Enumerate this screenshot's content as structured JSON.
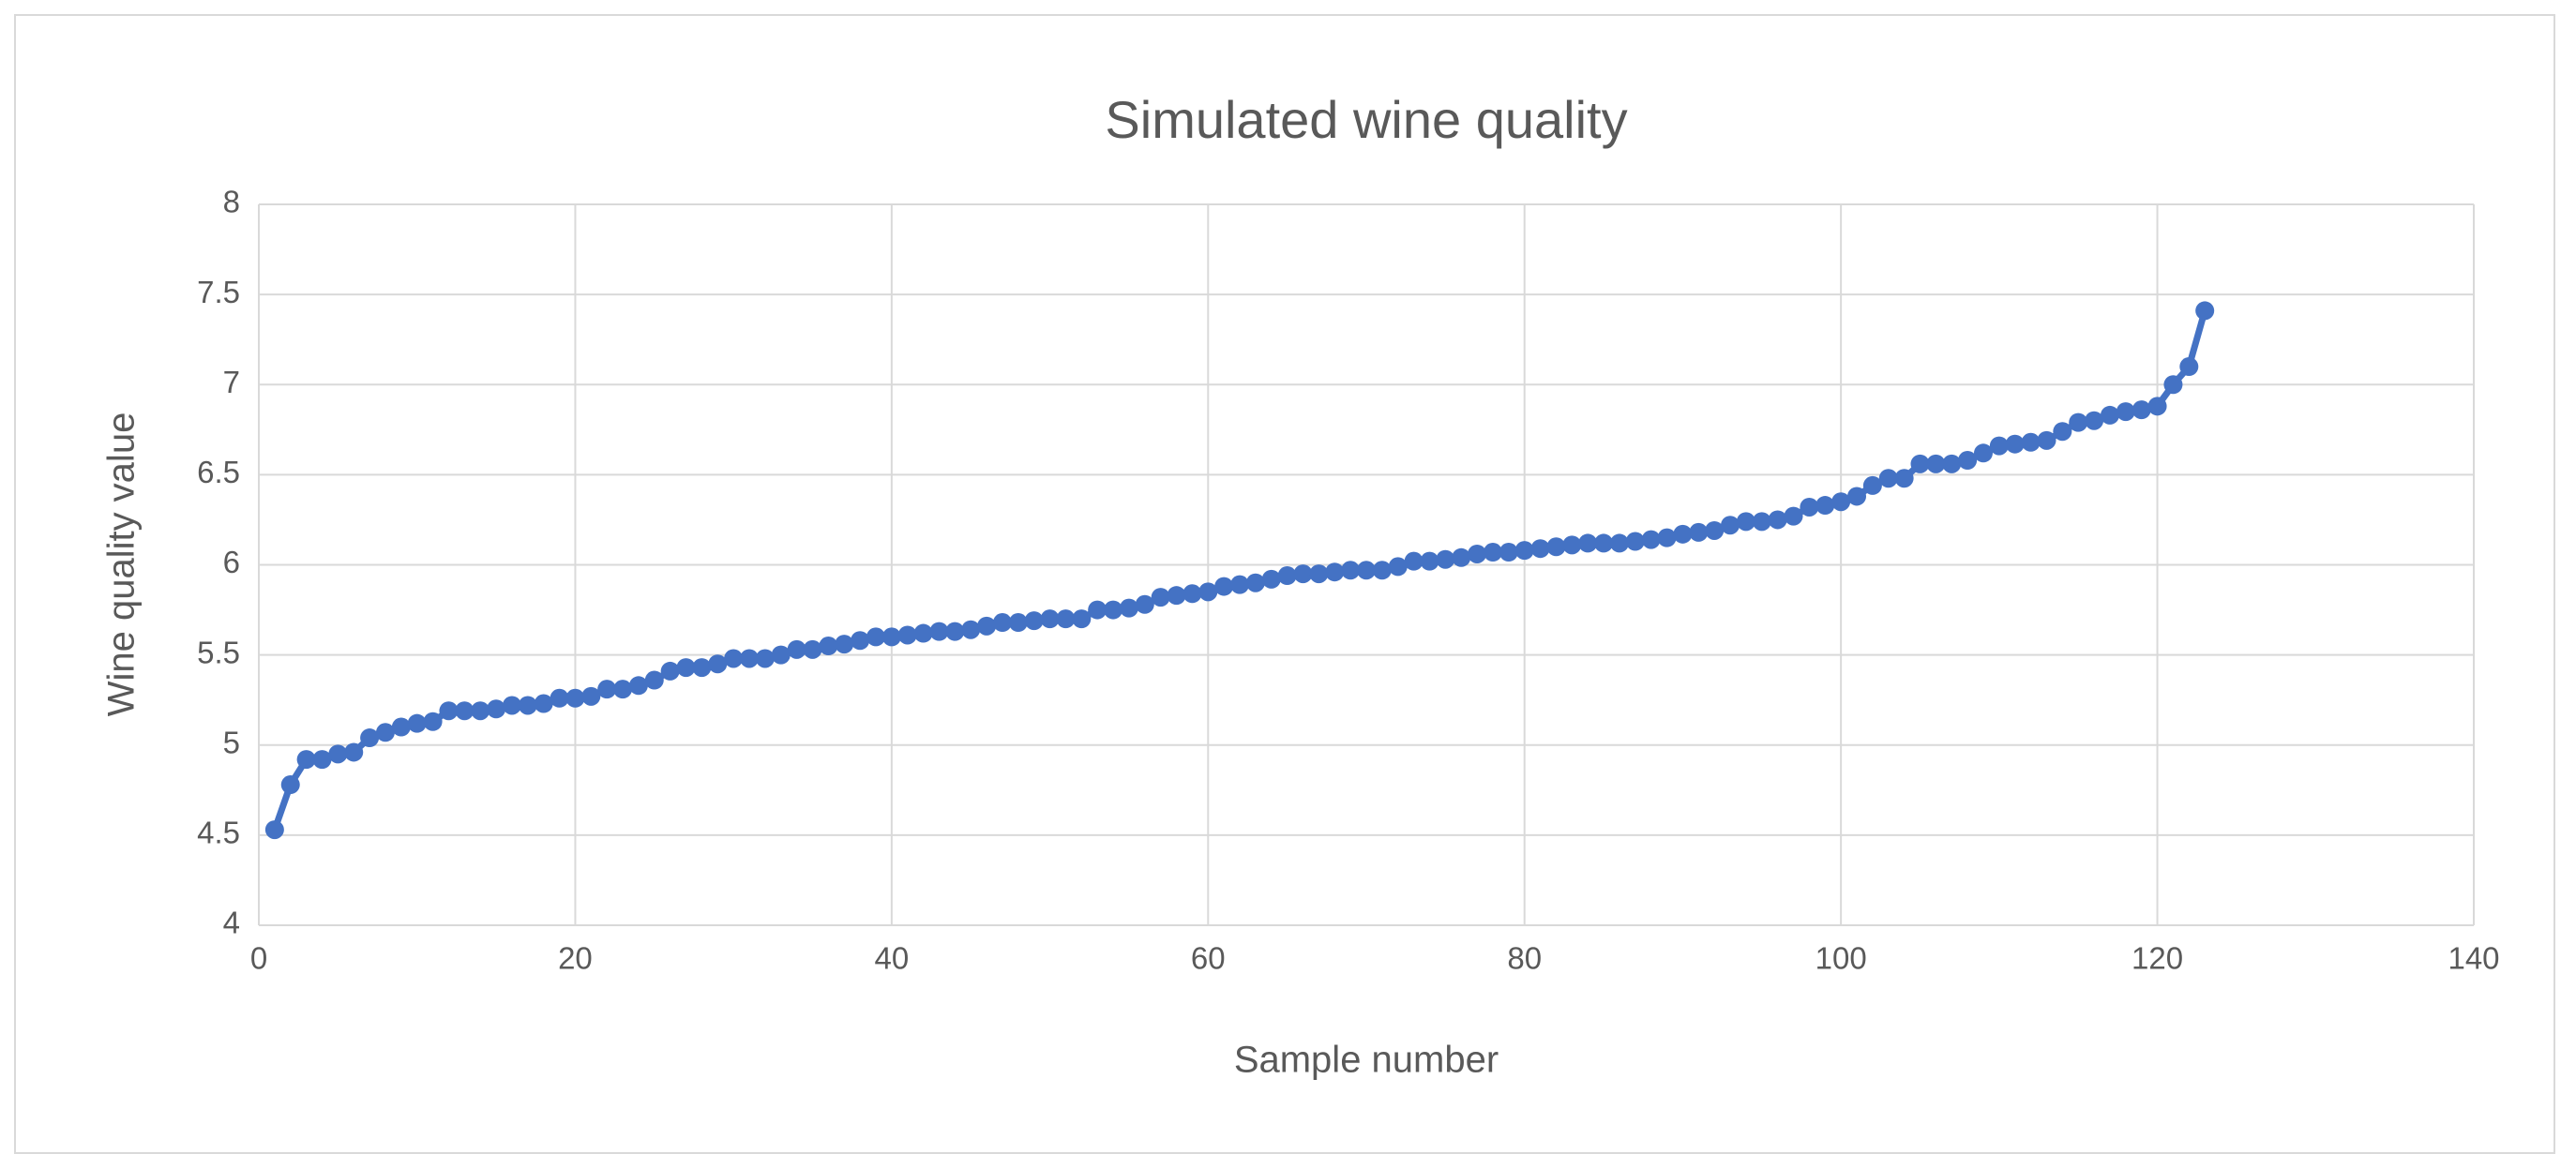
{
  "chart_data": {
    "type": "line",
    "title": "Simulated wine quality",
    "x_label": "Sample number",
    "y_label": "Wine quality value",
    "xlim": [
      0,
      140
    ],
    "xticks": [
      0,
      20,
      40,
      60,
      80,
      100,
      120,
      140
    ],
    "ylim": [
      4,
      8
    ],
    "yticks": [
      4,
      4.5,
      5,
      5.5,
      6,
      6.5,
      7,
      7.5,
      8
    ],
    "grid": true,
    "x": [
      1,
      2,
      3,
      4,
      5,
      6,
      7,
      8,
      9,
      10,
      11,
      12,
      13,
      14,
      15,
      16,
      17,
      18,
      19,
      20,
      21,
      22,
      23,
      24,
      25,
      26,
      27,
      28,
      29,
      30,
      31,
      32,
      33,
      34,
      35,
      36,
      37,
      38,
      39,
      40,
      41,
      42,
      43,
      44,
      45,
      46,
      47,
      48,
      49,
      50,
      51,
      52,
      53,
      54,
      55,
      56,
      57,
      58,
      59,
      60,
      61,
      62,
      63,
      64,
      65,
      66,
      67,
      68,
      69,
      70,
      71,
      72,
      73,
      74,
      75,
      76,
      77,
      78,
      79,
      80,
      81,
      82,
      83,
      84,
      85,
      86,
      87,
      88,
      89,
      90,
      91,
      92,
      93,
      94,
      95,
      96,
      97,
      98,
      99,
      100,
      101,
      102,
      103,
      104,
      105,
      106,
      107,
      108,
      109,
      110,
      111,
      112,
      113,
      114,
      115,
      116,
      117,
      118,
      119,
      120,
      121,
      122,
      123
    ],
    "series": [
      {
        "color": "#4472c4",
        "values": [
          4.53,
          4.78,
          4.92,
          4.92,
          4.95,
          4.96,
          5.04,
          5.07,
          5.1,
          5.12,
          5.13,
          5.19,
          5.19,
          5.19,
          5.2,
          5.22,
          5.22,
          5.23,
          5.26,
          5.26,
          5.27,
          5.31,
          5.31,
          5.33,
          5.36,
          5.41,
          5.43,
          5.43,
          5.45,
          5.48,
          5.48,
          5.48,
          5.5,
          5.53,
          5.53,
          5.55,
          5.56,
          5.58,
          5.6,
          5.6,
          5.61,
          5.62,
          5.63,
          5.63,
          5.64,
          5.66,
          5.68,
          5.68,
          5.69,
          5.7,
          5.7,
          5.7,
          5.75,
          5.75,
          5.76,
          5.78,
          5.82,
          5.83,
          5.84,
          5.85,
          5.88,
          5.89,
          5.9,
          5.92,
          5.94,
          5.95,
          5.95,
          5.96,
          5.97,
          5.97,
          5.97,
          5.99,
          6.02,
          6.02,
          6.03,
          6.04,
          6.06,
          6.07,
          6.07,
          6.08,
          6.09,
          6.1,
          6.11,
          6.12,
          6.12,
          6.12,
          6.13,
          6.14,
          6.15,
          6.17,
          6.18,
          6.19,
          6.22,
          6.24,
          6.24,
          6.25,
          6.27,
          6.32,
          6.33,
          6.35,
          6.38,
          6.44,
          6.48,
          6.48,
          6.56,
          6.56,
          6.56,
          6.58,
          6.62,
          6.66,
          6.67,
          6.68,
          6.69,
          6.74,
          6.79,
          6.8,
          6.83,
          6.85,
          6.86,
          6.88,
          7.0,
          7.1,
          7.41
        ]
      }
    ]
  }
}
